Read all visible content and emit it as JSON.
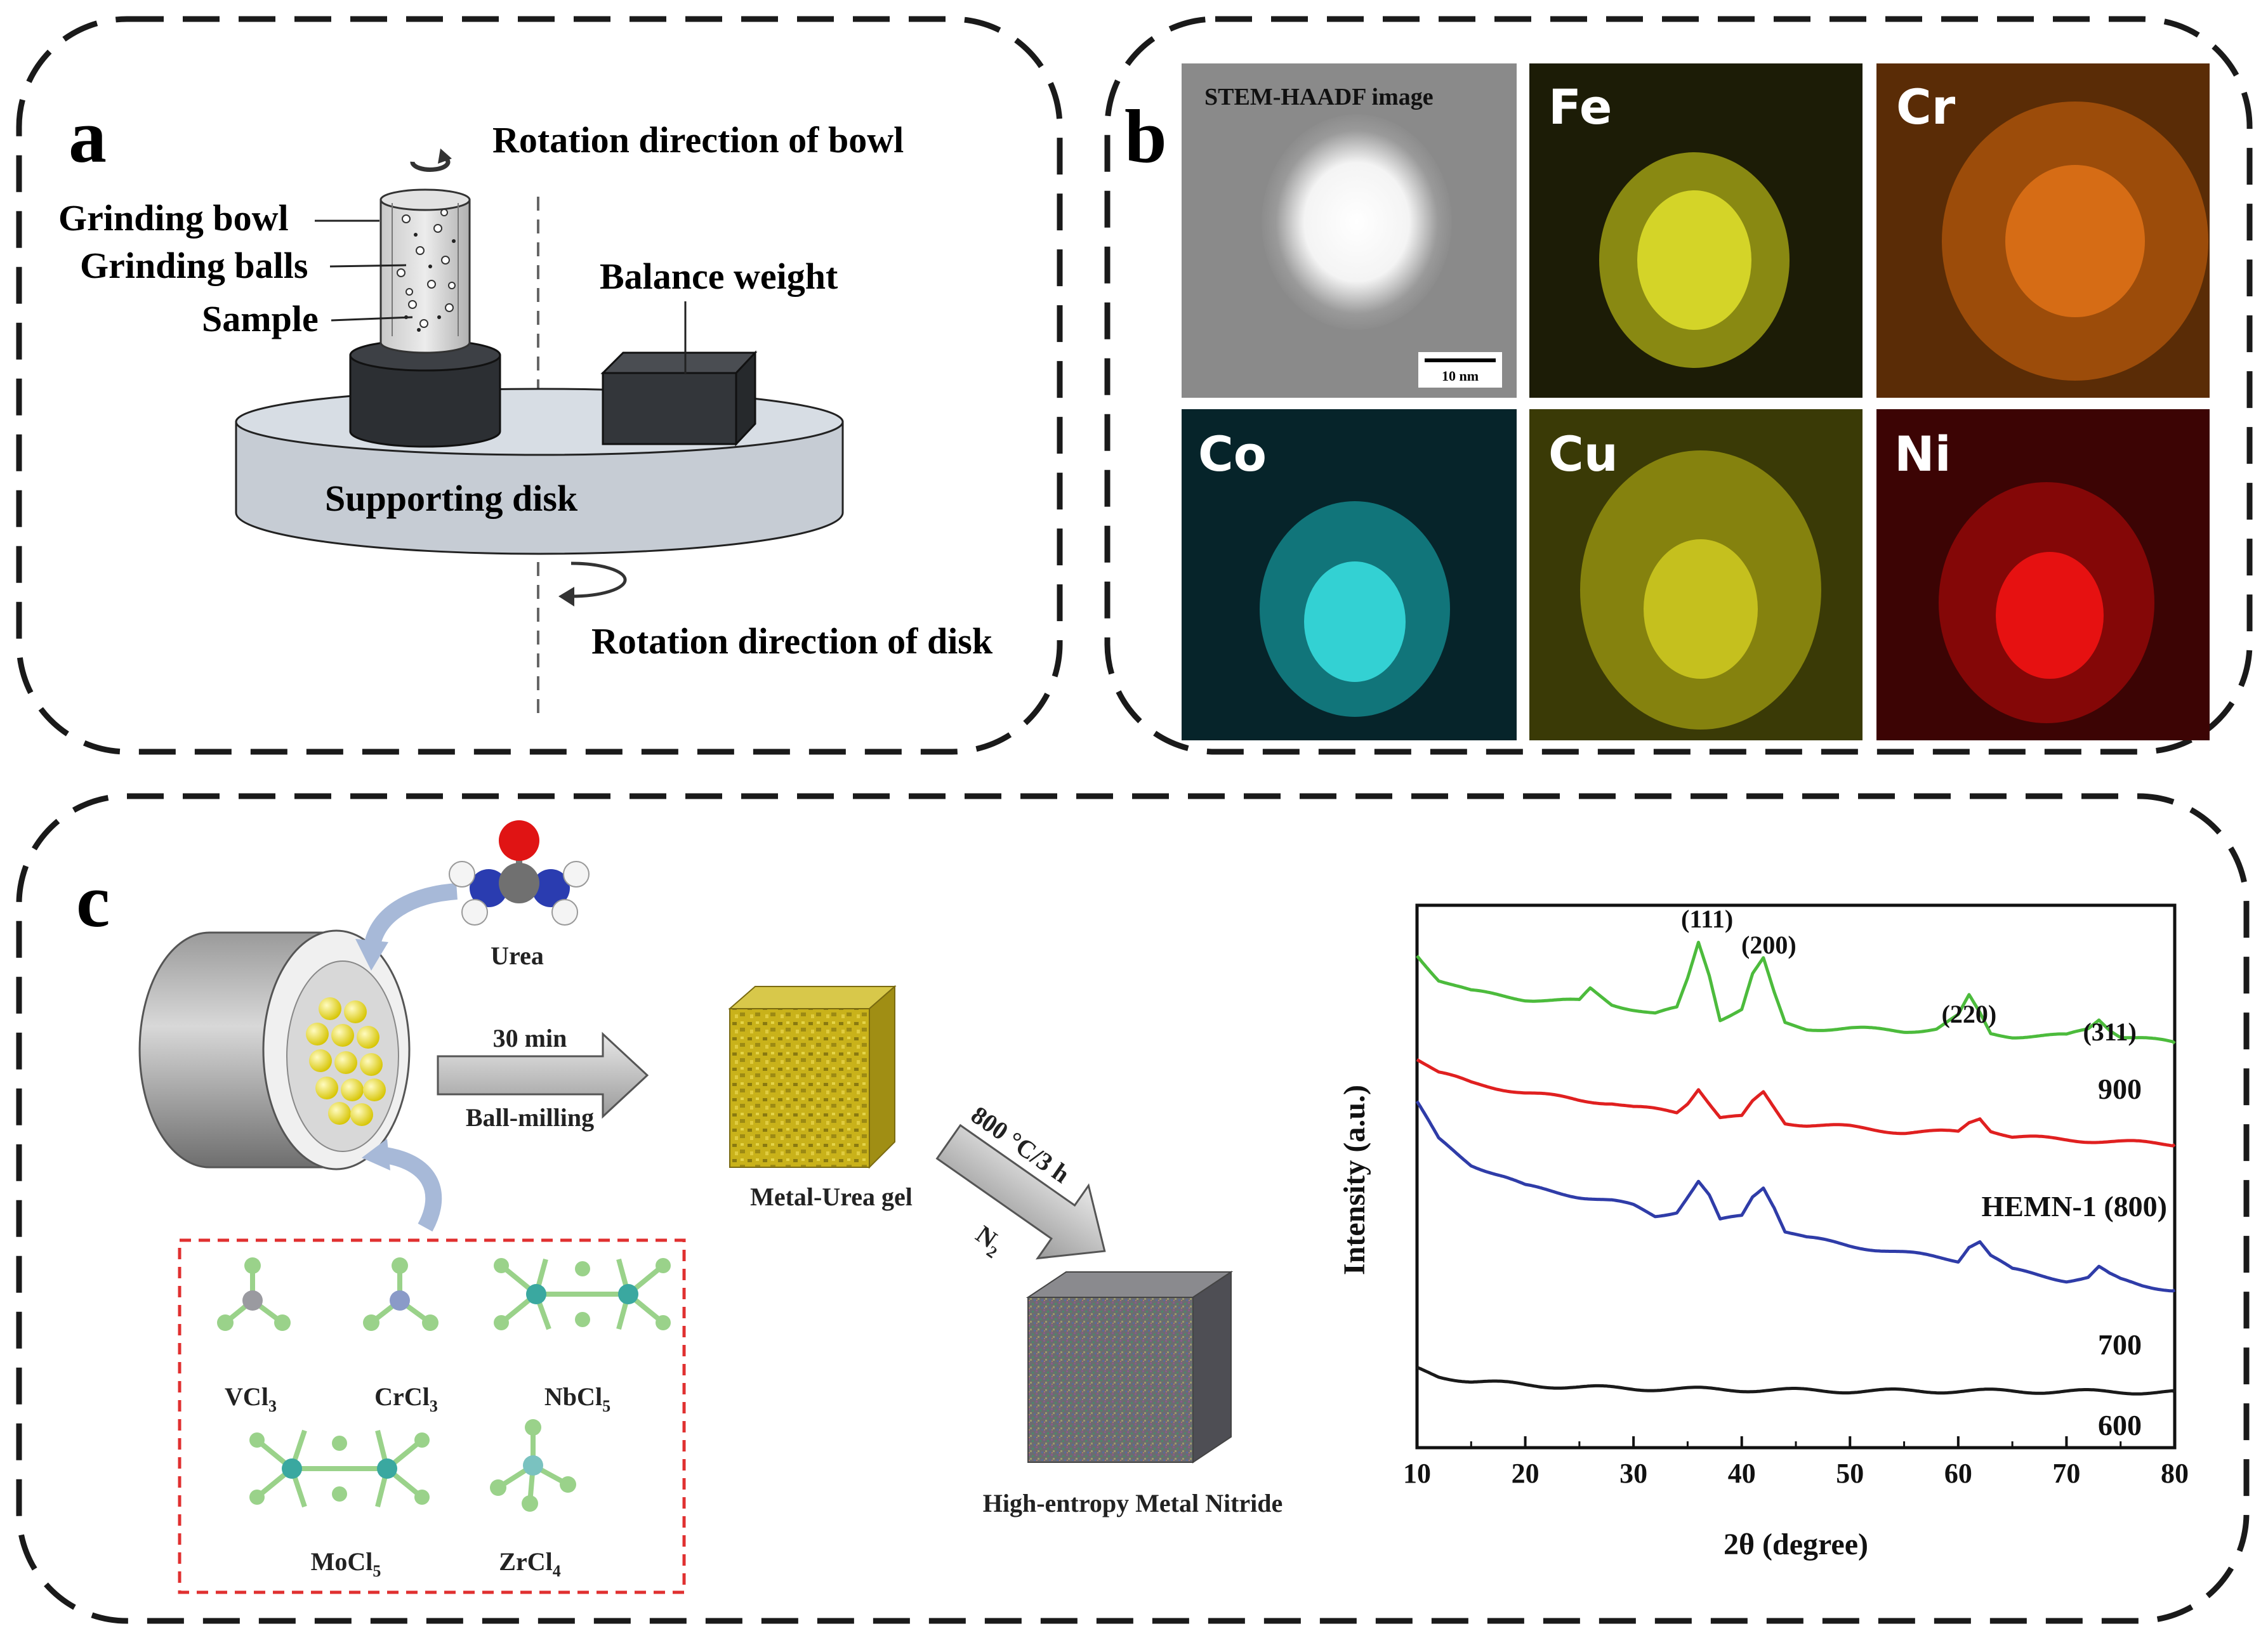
{
  "panel_a": {
    "letter": "a",
    "labels": {
      "rotation_bowl": "Rotation direction of bowl",
      "grinding_bowl": "Grinding bowl",
      "grinding_balls": "Grinding balls",
      "sample": "Sample",
      "balance_weight": "Balance weight",
      "supporting_disk": "Supporting disk",
      "rotation_disk": "Rotation direction of disk"
    }
  },
  "panel_b": {
    "letter": "b",
    "stem_title": "STEM-HAADF image",
    "scale_bar": "10 nm",
    "maps": [
      {
        "element": "Fe",
        "color": "#e3e31e",
        "bg": "#1c1c06"
      },
      {
        "element": "Cr",
        "color": "#f07a1a",
        "bg": "#5a2c06"
      },
      {
        "element": "Co",
        "color": "#27e3e6",
        "bg": "#06242a"
      },
      {
        "element": "Cu",
        "color": "#f0ea2a",
        "bg": "#3a3a06"
      },
      {
        "element": "Ni",
        "color": "#ff1414",
        "bg": "#3c0404"
      }
    ]
  },
  "panel_c": {
    "letter": "c",
    "urea": "Urea",
    "arrow1_top": "30 min",
    "arrow1_bottom": "Ball-milling",
    "gel": "Metal-Urea gel",
    "arrow2_top": "800 °C/3 h",
    "arrow2_bottom": "N",
    "arrow2_sub": "2",
    "product": "High-entropy Metal Nitride",
    "precursors": [
      {
        "base": "VCl",
        "sub": "3"
      },
      {
        "base": "CrCl",
        "sub": "3"
      },
      {
        "base": "NbCl",
        "sub": "5"
      },
      {
        "base": "MoCl",
        "sub": "5"
      },
      {
        "base": "ZrCl",
        "sub": "4"
      }
    ]
  },
  "chart_data": {
    "type": "line",
    "title": "",
    "xlabel": "2θ (degree)",
    "ylabel": "Intensity (a.u.)",
    "xlim": [
      10,
      80
    ],
    "xticks": [
      10,
      20,
      30,
      40,
      50,
      60,
      70,
      80
    ],
    "series": [
      {
        "name": "900",
        "color": "#4cbb3c",
        "x": [
          10,
          12,
          15,
          20,
          25,
          26,
          28,
          30,
          32,
          34,
          35,
          36,
          37,
          38,
          40,
          41,
          42,
          43,
          44,
          46,
          50,
          55,
          58,
          60,
          61,
          62,
          63,
          65,
          70,
          72,
          73,
          74,
          75,
          77,
          80
        ],
        "y": [
          1.0,
          0.9,
          0.85,
          0.82,
          0.81,
          0.86,
          0.8,
          0.78,
          0.76,
          0.78,
          0.9,
          1.05,
          0.92,
          0.74,
          0.78,
          0.92,
          0.98,
          0.84,
          0.72,
          0.7,
          0.7,
          0.69,
          0.7,
          0.75,
          0.83,
          0.76,
          0.68,
          0.67,
          0.67,
          0.7,
          0.74,
          0.7,
          0.67,
          0.66,
          0.64
        ]
      },
      {
        "name": "HEMN-1 (800)",
        "color": "#e02020",
        "x": [
          10,
          12,
          15,
          20,
          25,
          28,
          30,
          34,
          35,
          36,
          37,
          38,
          40,
          41,
          42,
          43,
          44,
          46,
          50,
          55,
          60,
          61,
          62,
          63,
          65,
          70,
          75,
          80
        ],
        "y": [
          0.58,
          0.52,
          0.48,
          0.44,
          0.41,
          0.4,
          0.38,
          0.36,
          0.4,
          0.46,
          0.4,
          0.34,
          0.34,
          0.4,
          0.44,
          0.38,
          0.32,
          0.31,
          0.3,
          0.28,
          0.28,
          0.32,
          0.34,
          0.29,
          0.26,
          0.25,
          0.24,
          0.23
        ]
      },
      {
        "name": "700",
        "color": "#2f3ca8",
        "x": [
          10,
          12,
          15,
          18,
          20,
          25,
          28,
          30,
          32,
          34,
          35,
          36,
          37,
          38,
          40,
          41,
          42,
          43,
          44,
          46,
          50,
          55,
          60,
          61,
          62,
          63,
          65,
          70,
          72,
          73,
          74,
          75,
          77,
          80
        ],
        "y": [
          0.4,
          0.25,
          0.15,
          0.1,
          0.06,
          0.02,
          0.0,
          -0.02,
          -0.06,
          -0.04,
          0.02,
          0.08,
          0.02,
          -0.08,
          -0.06,
          0.02,
          0.06,
          -0.02,
          -0.12,
          -0.15,
          -0.18,
          -0.21,
          -0.24,
          -0.18,
          -0.16,
          -0.22,
          -0.28,
          -0.32,
          -0.31,
          -0.27,
          -0.3,
          -0.32,
          -0.34,
          -0.36
        ]
      },
      {
        "name": "600",
        "color": "#1a1a1a",
        "x": [
          10,
          12,
          15,
          20,
          25,
          30,
          40,
          50,
          60,
          70,
          80
        ],
        "y": [
          -0.68,
          -0.71,
          -0.73,
          -0.745,
          -0.755,
          -0.76,
          -0.765,
          -0.77,
          -0.77,
          -0.772,
          -0.775
        ]
      }
    ],
    "annotations": [
      {
        "text": "(111)",
        "x": 36.8
      },
      {
        "text": "(200)",
        "x": 42.5
      },
      {
        "text": "(220)",
        "x": 61.0
      },
      {
        "text": "(311)",
        "x": 74.0
      }
    ],
    "series_labels": [
      "900",
      "HEMN-1 (800)",
      "700",
      "600"
    ]
  }
}
